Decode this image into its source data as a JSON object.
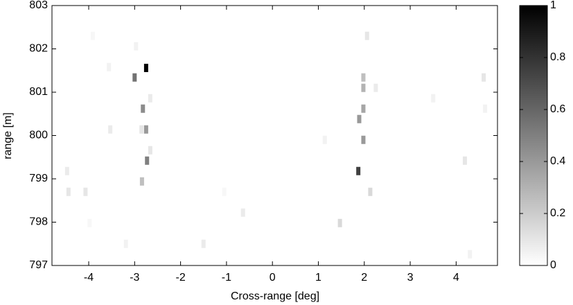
{
  "chart_data": {
    "type": "heatmap",
    "xlabel": "Cross-range [deg]",
    "ylabel": "range [m]",
    "xlim": [
      -4.8,
      4.9
    ],
    "xticks": [
      -4,
      -3,
      -2,
      -1,
      0,
      1,
      2,
      3,
      4
    ],
    "ylim": [
      797,
      803
    ],
    "yticks": [
      797,
      798,
      799,
      800,
      801,
      802,
      803
    ],
    "colormap": "gray_r",
    "colorbar": {
      "lim": [
        0,
        1
      ],
      "ticks": [
        0,
        0.2,
        0.4,
        0.6,
        0.8,
        1
      ]
    },
    "x": [
      -2.75,
      -3.0,
      -2.82,
      -2.75,
      -2.73,
      -2.84,
      1.87,
      1.98,
      1.89,
      1.98,
      1.98,
      1.98,
      2.13,
      2.06,
      1.47,
      -2.85,
      -2.66,
      -2.66,
      -4.44,
      -4.07,
      -4.47,
      -3.53,
      4.6,
      4.63,
      4.19,
      3.5,
      -0.64,
      -1.5,
      -3.19,
      2.25,
      1.14,
      -2.97,
      -3.56,
      -3.91,
      4.3,
      -1.05,
      -3.98
    ],
    "y": [
      801.56,
      801.34,
      800.62,
      800.14,
      799.42,
      798.94,
      799.18,
      799.9,
      800.38,
      800.62,
      801.1,
      801.34,
      798.7,
      802.3,
      797.98,
      800.14,
      800.86,
      799.66,
      798.7,
      798.7,
      799.18,
      800.14,
      801.34,
      800.62,
      799.42,
      800.86,
      798.22,
      797.5,
      797.5,
      801.1,
      799.9,
      802.06,
      801.58,
      802.3,
      797.26,
      798.7,
      797.98
    ],
    "values": [
      1.0,
      0.55,
      0.45,
      0.4,
      0.5,
      0.25,
      0.75,
      0.4,
      0.4,
      0.35,
      0.3,
      0.25,
      0.15,
      0.1,
      0.15,
      0.1,
      0.08,
      0.1,
      0.1,
      0.1,
      0.08,
      0.08,
      0.1,
      0.05,
      0.1,
      0.05,
      0.08,
      0.08,
      0.05,
      0.08,
      0.05,
      0.05,
      0.05,
      0.03,
      0.05,
      0.03,
      0.03
    ]
  }
}
